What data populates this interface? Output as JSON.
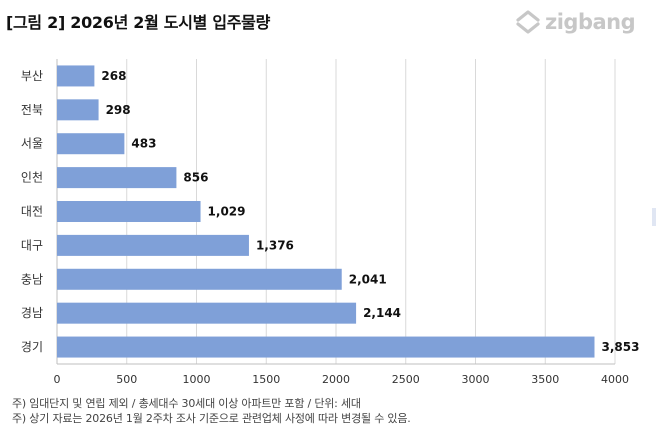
{
  "title": "[그림 2] 2026년 2월 도시별 입주물량",
  "logo": {
    "text": "zigbang",
    "icon": "zigbang-logo-icon"
  },
  "chart_data": {
    "type": "bar",
    "orientation": "horizontal",
    "categories": [
      "부산",
      "전북",
      "서울",
      "인천",
      "대전",
      "대구",
      "충남",
      "경남",
      "경기"
    ],
    "values": [
      268,
      298,
      483,
      856,
      1029,
      1376,
      2041,
      2144,
      3853
    ],
    "value_labels": [
      "268",
      "298",
      "483",
      "856",
      "1,029",
      "1,376",
      "2,041",
      "2,144",
      "3,853"
    ],
    "xlim": [
      0,
      4000
    ],
    "xticks": [
      0,
      500,
      1000,
      1500,
      2000,
      2500,
      3000,
      3500,
      4000
    ],
    "grid": true,
    "bar_color": "#7fa0d8"
  },
  "footnotes": [
    "주) 임대단지 및 연립 제외 / 총세대수 30세대 이상 아파트만 포함 / 단위: 세대",
    "주) 상기 자료는 2026년 1월 2주차 조사 기준으로 관련업체 사정에 따라 변경될 수 있음."
  ]
}
